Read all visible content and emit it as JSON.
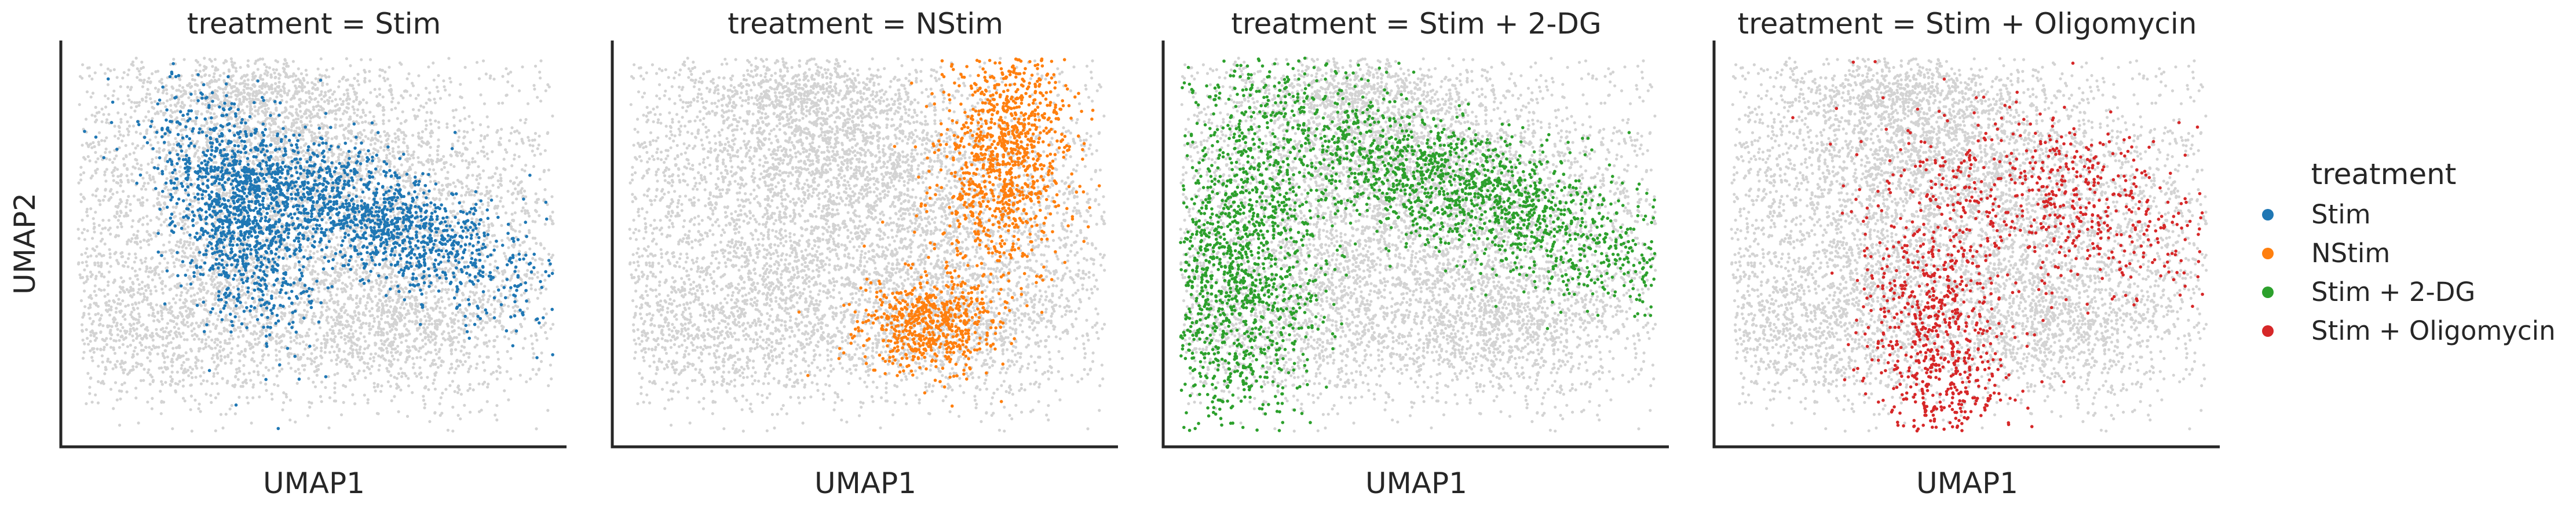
{
  "chart_data": {
    "type": "scatter",
    "xlabel": "UMAP1",
    "ylabel": "UMAP2",
    "background_color": "#d3d3d3",
    "legend": {
      "title": "treatment",
      "placement": "right",
      "entries": [
        {
          "label": "Stim",
          "color": "#1f77b4"
        },
        {
          "label": "NStim",
          "color": "#ff7f0e"
        },
        {
          "label": "Stim + 2-DG",
          "color": "#2ca02c"
        },
        {
          "label": "Stim + Oligomycin",
          "color": "#d62728"
        }
      ]
    },
    "panels": [
      {
        "title": "treatment = Stim",
        "highlight": "Stim",
        "color": "#1f77b4"
      },
      {
        "title": "treatment = NStim",
        "highlight": "NStim",
        "color": "#ff7f0e"
      },
      {
        "title": "treatment = Stim + 2-DG",
        "highlight": "Stim + 2-DG",
        "color": "#2ca02c"
      },
      {
        "title": "treatment = Stim + Oligomycin",
        "highlight": "Stim + Oligomycin",
        "color": "#d62728"
      }
    ],
    "grid": false,
    "ticks": false
  }
}
